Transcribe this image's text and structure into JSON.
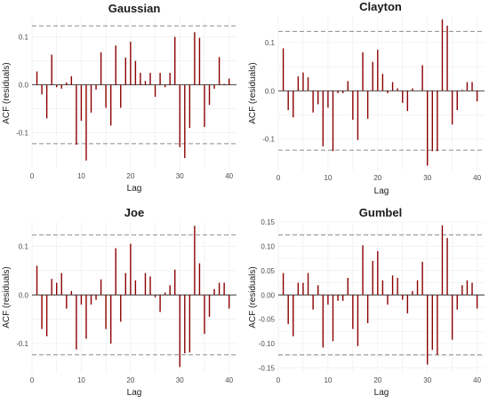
{
  "chart_data": [
    {
      "type": "bar",
      "title": "Gaussian",
      "xlabel": "Lag",
      "ylabel": "ACF (residuals)",
      "xlim": [
        0,
        41.5
      ],
      "ylim": [
        -0.175,
        0.14
      ],
      "xticks": [
        0,
        10,
        20,
        30,
        40
      ],
      "yticks": [
        -0.1,
        0.0,
        0.1
      ],
      "ytick_labels": [
        "-0.1",
        "0.0",
        "0.1"
      ],
      "ci": 0.123,
      "lags": [
        1,
        2,
        3,
        4,
        5,
        6,
        7,
        8,
        9,
        10,
        11,
        12,
        13,
        14,
        15,
        16,
        17,
        18,
        19,
        20,
        21,
        22,
        23,
        24,
        25,
        26,
        27,
        28,
        29,
        30,
        31,
        32,
        33,
        34,
        35,
        36,
        37,
        38,
        39,
        40
      ],
      "values": [
        0.028,
        -0.02,
        -0.07,
        0.063,
        -0.005,
        -0.008,
        0.005,
        0.018,
        -0.125,
        -0.075,
        -0.158,
        -0.058,
        -0.01,
        0.068,
        -0.048,
        -0.085,
        0.082,
        -0.048,
        0.057,
        0.09,
        0.05,
        0.025,
        0.008,
        0.025,
        -0.025,
        0.025,
        -0.005,
        0.025,
        0.1,
        -0.13,
        -0.153,
        -0.09,
        0.11,
        0.098,
        -0.088,
        -0.042,
        -0.008,
        0.058,
        0.002,
        0.013
      ]
    },
    {
      "type": "bar",
      "title": "Clayton",
      "xlabel": "Lag",
      "ylabel": "ACF (residuals)",
      "xlim": [
        0,
        41.5
      ],
      "ylim": [
        -0.165,
        0.155
      ],
      "xticks": [
        0,
        10,
        20,
        30,
        40
      ],
      "yticks": [
        -0.1,
        0.0,
        0.1
      ],
      "ytick_labels": [
        "-0.1",
        "0.0",
        "0.1"
      ],
      "ci": 0.123,
      "lags": [
        1,
        2,
        3,
        4,
        5,
        6,
        7,
        8,
        9,
        10,
        11,
        12,
        13,
        14,
        15,
        16,
        17,
        18,
        19,
        20,
        21,
        22,
        23,
        24,
        25,
        26,
        27,
        28,
        29,
        30,
        31,
        32,
        33,
        34,
        35,
        36,
        37,
        38,
        39,
        40
      ],
      "values": [
        0.088,
        -0.04,
        -0.055,
        0.03,
        0.038,
        0.028,
        -0.045,
        -0.028,
        -0.115,
        -0.035,
        -0.125,
        -0.005,
        -0.005,
        0.02,
        -0.06,
        -0.102,
        0.08,
        -0.058,
        0.06,
        0.085,
        0.035,
        -0.005,
        0.018,
        0.005,
        -0.025,
        -0.042,
        0.005,
        0.0,
        0.053,
        -0.155,
        -0.125,
        -0.125,
        0.148,
        0.135,
        -0.07,
        -0.04,
        0.002,
        0.018,
        0.018,
        -0.022
      ]
    },
    {
      "type": "bar",
      "title": "Joe",
      "xlabel": "Lag",
      "ylabel": "ACF (residuals)",
      "xlim": [
        0,
        41.5
      ],
      "ylim": [
        -0.16,
        0.15
      ],
      "xticks": [
        0,
        10,
        20,
        30,
        40
      ],
      "yticks": [
        -0.1,
        0.0,
        0.1
      ],
      "ytick_labels": [
        "-0.1",
        "0.0",
        "0.1"
      ],
      "ci": 0.123,
      "lags": [
        1,
        2,
        3,
        4,
        5,
        6,
        7,
        8,
        9,
        10,
        11,
        12,
        13,
        14,
        15,
        16,
        17,
        18,
        19,
        20,
        21,
        22,
        23,
        24,
        25,
        26,
        27,
        28,
        29,
        30,
        31,
        32,
        33,
        34,
        35,
        36,
        37,
        38,
        39,
        40
      ],
      "values": [
        0.06,
        -0.07,
        -0.085,
        0.033,
        0.025,
        0.045,
        -0.028,
        0.008,
        -0.112,
        -0.02,
        -0.09,
        -0.02,
        -0.01,
        0.032,
        -0.07,
        -0.1,
        0.096,
        -0.055,
        0.045,
        0.105,
        0.03,
        0.0,
        0.045,
        0.038,
        -0.005,
        -0.035,
        0.005,
        0.02,
        0.052,
        -0.148,
        -0.12,
        -0.118,
        0.142,
        0.065,
        -0.08,
        -0.045,
        0.012,
        0.025,
        0.025,
        -0.028
      ]
    },
    {
      "type": "bar",
      "title": "Gumbel",
      "xlabel": "Lag",
      "ylabel": "ACF (residuals)",
      "xlim": [
        0,
        41.5
      ],
      "ylim": [
        -0.16,
        0.15
      ],
      "xticks": [
        0,
        10,
        20,
        30,
        40
      ],
      "yticks": [
        -0.15,
        -0.1,
        -0.05,
        0.0,
        0.05,
        0.1,
        0.15
      ],
      "ytick_labels": [
        "-0.15",
        "-0.10",
        "-0.05",
        "0.00",
        "0.05",
        "0.10",
        "0.15"
      ],
      "ci": 0.123,
      "lags": [
        1,
        2,
        3,
        4,
        5,
        6,
        7,
        8,
        9,
        10,
        11,
        12,
        13,
        14,
        15,
        16,
        17,
        18,
        19,
        20,
        21,
        22,
        23,
        24,
        25,
        26,
        27,
        28,
        29,
        30,
        31,
        32,
        33,
        34,
        35,
        36,
        37,
        38,
        39,
        40
      ],
      "values": [
        0.045,
        -0.06,
        -0.085,
        0.025,
        0.025,
        0.045,
        -0.03,
        0.02,
        -0.108,
        -0.02,
        -0.095,
        -0.012,
        -0.012,
        0.035,
        -0.07,
        -0.105,
        0.102,
        -0.058,
        0.07,
        0.09,
        0.03,
        -0.02,
        0.04,
        0.035,
        -0.01,
        -0.038,
        0.008,
        0.03,
        0.068,
        -0.143,
        -0.113,
        -0.123,
        0.143,
        0.117,
        -0.092,
        -0.03,
        0.02,
        0.03,
        0.025,
        -0.028
      ]
    }
  ]
}
